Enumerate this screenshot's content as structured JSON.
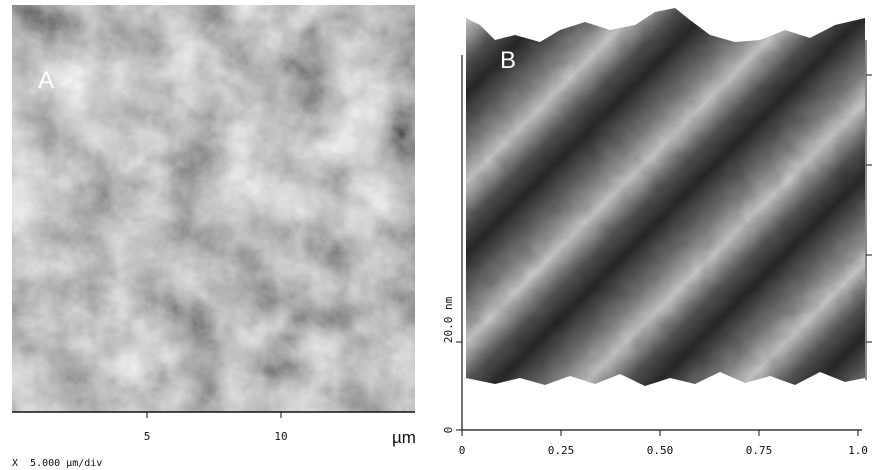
{
  "panel_a": {
    "label": "A",
    "x_ticks": [
      "5",
      "10"
    ],
    "x_unit": "µm",
    "scale_note": "X  5.000 µm/div"
  },
  "panel_b": {
    "label": "B",
    "x_ticks": [
      "0",
      "0.25",
      "0.50",
      "0.75",
      "1.0"
    ],
    "z_ticks": [
      "0",
      "20.0 nm"
    ]
  }
}
